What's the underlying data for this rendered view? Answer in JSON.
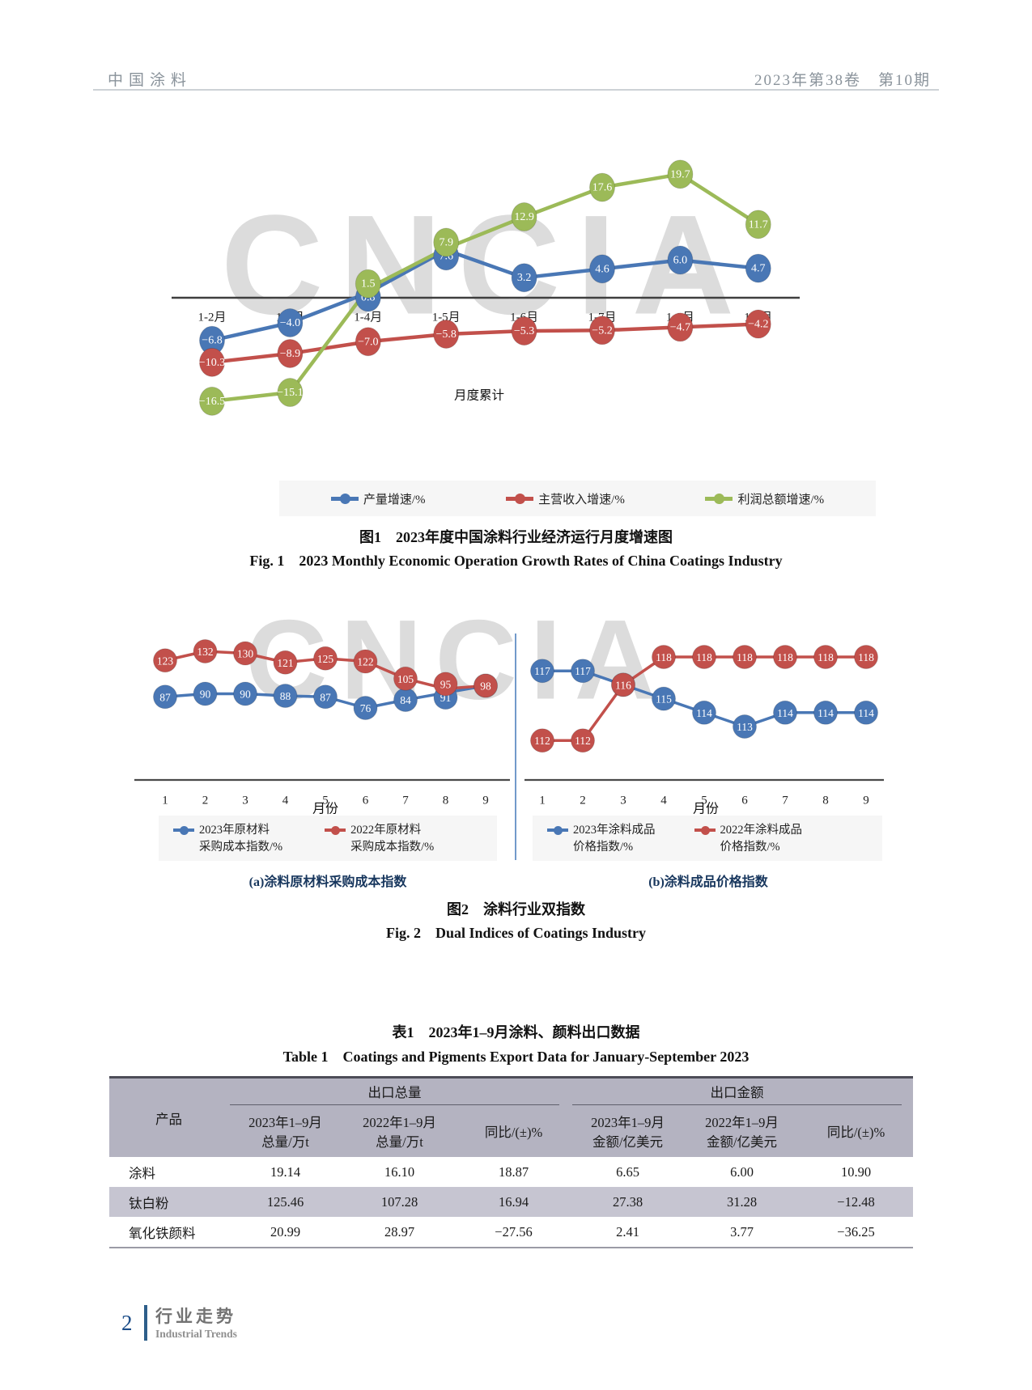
{
  "header": {
    "journal": "中国涂料",
    "issue": "2023年第38卷　第10期"
  },
  "chart_data": [
    {
      "id": "fig1",
      "type": "line",
      "watermark": "CNCIA",
      "annotation": "月度累计",
      "categories": [
        "1-2月",
        "1-3月",
        "1-4月",
        "1-5月",
        "1-6月",
        "1-7月",
        "1-8月",
        "1-9月"
      ],
      "series": [
        {
          "name": "产量增速/%",
          "color": "#4977b5",
          "values": [
            -6.8,
            -4.0,
            0.8,
            7.6,
            3.2,
            4.6,
            6.0,
            4.7
          ]
        },
        {
          "name": "主营收入增速/%",
          "color": "#c2504b",
          "values": [
            -10.3,
            -8.9,
            -7.0,
            -5.8,
            -5.3,
            -5.2,
            -4.7,
            -4.2
          ]
        },
        {
          "name": "利润总额增速/%",
          "color": "#9cba58",
          "values": [
            -16.5,
            -15.1,
            1.5,
            7.9,
            12.9,
            17.6,
            19.7,
            11.7
          ]
        }
      ],
      "legend_position": "bottom",
      "title": "图1　2023年度中国涂料行业经济运行月度增速图",
      "title_en": "Fig. 1　2023 Monthly Economic Operation Growth Rates of China Coatings Industry"
    },
    {
      "id": "fig2a",
      "type": "line",
      "watermark": "CNCIA",
      "categories": [
        "1",
        "2",
        "3",
        "4",
        "5",
        "6",
        "7",
        "8",
        "9"
      ],
      "xlabel": "月份",
      "series": [
        {
          "name": "2023年原材料\n采购成本指数/%",
          "color": "#4977b5",
          "values": [
            87,
            90,
            90,
            88,
            87,
            76,
            84,
            91,
            98
          ]
        },
        {
          "name": "2022年原材料\n采购成本指数/%",
          "color": "#c2504b",
          "values": [
            123,
            132,
            130,
            121,
            125,
            122,
            105,
            95,
            98
          ]
        }
      ],
      "subcaption": "(a)涂料原材料采购成本指数"
    },
    {
      "id": "fig2b",
      "type": "line",
      "categories": [
        "1",
        "2",
        "3",
        "4",
        "5",
        "6",
        "7",
        "8",
        "9"
      ],
      "xlabel": "月份",
      "series": [
        {
          "name": "2023年涂料成品\n价格指数/%",
          "color": "#4977b5",
          "values": [
            117,
            117,
            116,
            115,
            114,
            113,
            114,
            114,
            114
          ]
        },
        {
          "name": "2022年涂料成品\n价格指数/%",
          "color": "#c2504b",
          "values": [
            112,
            112,
            116,
            118,
            118,
            118,
            118,
            118,
            118
          ]
        }
      ],
      "subcaption": "(b)涂料成品价格指数"
    }
  ],
  "fig2_caption": {
    "zh": "图2　涂料行业双指数",
    "en": "Fig. 2　Dual Indices of Coatings Industry"
  },
  "table1": {
    "caption_zh": "表1　2023年1–9月涂料、颜料出口数据",
    "caption_en": "Table 1　Coatings and Pigments Export Data for January-September 2023",
    "col_product": "产品",
    "groups": [
      {
        "label": "出口总量",
        "cols": [
          "2023年1–9月\n总量/万t",
          "2022年1–9月\n总量/万t",
          "同比/(±)%"
        ]
      },
      {
        "label": "出口金额",
        "cols": [
          "2023年1–9月\n金额/亿美元",
          "2022年1–9月\n金额/亿美元",
          "同比/(±)%"
        ]
      }
    ],
    "rows": [
      {
        "product": "涂料",
        "values": [
          "19.14",
          "16.10",
          "18.87",
          "6.65",
          "6.00",
          "10.90"
        ]
      },
      {
        "product": "钛白粉",
        "values": [
          "125.46",
          "107.28",
          "16.94",
          "27.38",
          "31.28",
          "−12.48"
        ]
      },
      {
        "product": "氧化铁颜料",
        "values": [
          "20.99",
          "28.97",
          "−27.56",
          "2.41",
          "3.77",
          "−36.25"
        ]
      }
    ]
  },
  "footer": {
    "page": "2",
    "section_zh": "行业走势",
    "section_en": "Industrial Trends"
  }
}
